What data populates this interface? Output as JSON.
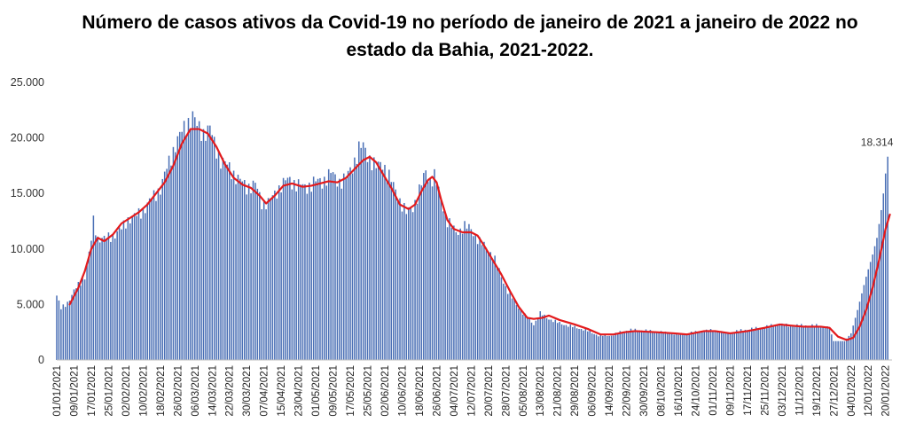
{
  "chart_data": {
    "type": "bar",
    "title": "Número de casos ativos da Covid-19 no período de janeiro de 2021 a janeiro de 2022 no estado da Bahia, 2021-2022.",
    "xlabel": "",
    "ylabel": "",
    "ylim": [
      0,
      25000
    ],
    "y_ticks": [
      0,
      5000,
      10000,
      15000,
      20000,
      25000
    ],
    "y_tick_labels": [
      "0",
      "5.000",
      "10.000",
      "15.000",
      "20.000",
      "25.000"
    ],
    "x_ticks": [
      {
        "day": 0,
        "label": "01/01/2021"
      },
      {
        "day": 8,
        "label": "09/01/2021"
      },
      {
        "day": 16,
        "label": "17/01/2021"
      },
      {
        "day": 24,
        "label": "25/01/2021"
      },
      {
        "day": 32,
        "label": "02/02/2021"
      },
      {
        "day": 40,
        "label": "10/02/2021"
      },
      {
        "day": 48,
        "label": "18/02/2021"
      },
      {
        "day": 56,
        "label": "26/02/2021"
      },
      {
        "day": 64,
        "label": "06/03/2021"
      },
      {
        "day": 72,
        "label": "14/03/2021"
      },
      {
        "day": 80,
        "label": "22/03/2021"
      },
      {
        "day": 88,
        "label": "30/03/2021"
      },
      {
        "day": 96,
        "label": "07/04/2021"
      },
      {
        "day": 104,
        "label": "15/04/2021"
      },
      {
        "day": 112,
        "label": "23/04/2021"
      },
      {
        "day": 120,
        "label": "01/05/2021"
      },
      {
        "day": 128,
        "label": "09/05/2021"
      },
      {
        "day": 136,
        "label": "17/05/2021"
      },
      {
        "day": 144,
        "label": "25/05/2021"
      },
      {
        "day": 152,
        "label": "02/06/2021"
      },
      {
        "day": 160,
        "label": "10/06/2021"
      },
      {
        "day": 168,
        "label": "18/06/2021"
      },
      {
        "day": 176,
        "label": "26/06/2021"
      },
      {
        "day": 184,
        "label": "04/07/2021"
      },
      {
        "day": 192,
        "label": "12/07/2021"
      },
      {
        "day": 200,
        "label": "20/07/2021"
      },
      {
        "day": 208,
        "label": "28/07/2021"
      },
      {
        "day": 216,
        "label": "05/08/2021"
      },
      {
        "day": 224,
        "label": "13/08/2021"
      },
      {
        "day": 232,
        "label": "21/08/2021"
      },
      {
        "day": 240,
        "label": "29/08/2021"
      },
      {
        "day": 248,
        "label": "06/09/2021"
      },
      {
        "day": 256,
        "label": "14/09/2021"
      },
      {
        "day": 264,
        "label": "22/09/2021"
      },
      {
        "day": 272,
        "label": "30/09/2021"
      },
      {
        "day": 280,
        "label": "08/10/2021"
      },
      {
        "day": 288,
        "label": "16/10/2021"
      },
      {
        "day": 296,
        "label": "24/10/2021"
      },
      {
        "day": 304,
        "label": "01/11/2021"
      },
      {
        "day": 312,
        "label": "09/11/2021"
      },
      {
        "day": 320,
        "label": "17/11/2021"
      },
      {
        "day": 328,
        "label": "25/11/2021"
      },
      {
        "day": 336,
        "label": "03/12/2021"
      },
      {
        "day": 344,
        "label": "11/12/2021"
      },
      {
        "day": 352,
        "label": "19/12/2021"
      },
      {
        "day": 360,
        "label": "27/12/2021"
      },
      {
        "day": 368,
        "label": "04/01/2022"
      },
      {
        "day": 376,
        "label": "12/01/2022"
      },
      {
        "day": 384,
        "label": "20/01/2022"
      }
    ],
    "x_range_days": [
      0,
      387
    ],
    "series": [
      {
        "kind": "bar",
        "color": "#4a6fb5",
        "description": "daily active cases (piecewise-linear keyframes, day = days since 01/01/2021)",
        "keyframes": [
          [
            0,
            5800
          ],
          [
            2,
            4600
          ],
          [
            5,
            5200
          ],
          [
            9,
            6500
          ],
          [
            13,
            7500
          ],
          [
            15,
            9500
          ],
          [
            16,
            10800
          ],
          [
            17,
            12500
          ],
          [
            19,
            11000
          ],
          [
            22,
            10900
          ],
          [
            26,
            11200
          ],
          [
            30,
            11800
          ],
          [
            33,
            12700
          ],
          [
            37,
            13000
          ],
          [
            40,
            13500
          ],
          [
            44,
            14500
          ],
          [
            48,
            15500
          ],
          [
            51,
            17200
          ],
          [
            55,
            19500
          ],
          [
            58,
            20500
          ],
          [
            61,
            21500
          ],
          [
            63,
            22000
          ],
          [
            65,
            21000
          ],
          [
            68,
            20500
          ],
          [
            71,
            20800
          ],
          [
            73,
            19500
          ],
          [
            76,
            18000
          ],
          [
            80,
            17300
          ],
          [
            84,
            16300
          ],
          [
            88,
            15600
          ],
          [
            92,
            15800
          ],
          [
            95,
            14200
          ],
          [
            98,
            14200
          ],
          [
            101,
            14900
          ],
          [
            104,
            15800
          ],
          [
            107,
            16200
          ],
          [
            111,
            15900
          ],
          [
            115,
            15500
          ],
          [
            119,
            16000
          ],
          [
            123,
            16100
          ],
          [
            127,
            16800
          ],
          [
            131,
            16100
          ],
          [
            134,
            16300
          ],
          [
            137,
            17500
          ],
          [
            140,
            19000
          ],
          [
            142,
            19200
          ],
          [
            145,
            18200
          ],
          [
            148,
            17300
          ],
          [
            151,
            17800
          ],
          [
            154,
            16500
          ],
          [
            158,
            14800
          ],
          [
            162,
            13200
          ],
          [
            165,
            13800
          ],
          [
            168,
            15200
          ],
          [
            171,
            17000
          ],
          [
            173,
            16200
          ],
          [
            175,
            16500
          ],
          [
            178,
            14500
          ],
          [
            181,
            12500
          ],
          [
            185,
            11500
          ],
          [
            189,
            12000
          ],
          [
            192,
            11800
          ],
          [
            196,
            10600
          ],
          [
            200,
            10000
          ],
          [
            203,
            9000
          ],
          [
            206,
            7500
          ],
          [
            209,
            6200
          ],
          [
            213,
            5000
          ],
          [
            217,
            4000
          ],
          [
            221,
            3200
          ],
          [
            224,
            4200
          ],
          [
            227,
            3800
          ],
          [
            233,
            3300
          ],
          [
            239,
            3000
          ],
          [
            245,
            2700
          ],
          [
            251,
            2200
          ],
          [
            257,
            2200
          ],
          [
            261,
            2500
          ],
          [
            265,
            2700
          ],
          [
            270,
            2700
          ],
          [
            280,
            2500
          ],
          [
            288,
            2300
          ],
          [
            296,
            2500
          ],
          [
            304,
            2700
          ],
          [
            310,
            2400
          ],
          [
            318,
            2700
          ],
          [
            326,
            2900
          ],
          [
            334,
            3200
          ],
          [
            340,
            3100
          ],
          [
            346,
            3100
          ],
          [
            352,
            3100
          ],
          [
            358,
            2900
          ],
          [
            360,
            1700
          ],
          [
            365,
            1700
          ],
          [
            368,
            2400
          ],
          [
            371,
            4500
          ],
          [
            375,
            7500
          ],
          [
            378,
            9500
          ],
          [
            380,
            11000
          ],
          [
            382,
            13500
          ],
          [
            383,
            15000
          ],
          [
            384,
            16800
          ],
          [
            385,
            18314
          ]
        ]
      },
      {
        "kind": "line",
        "color": "#e31a1c",
        "description": "moving average of active cases",
        "keyframes": [
          [
            6,
            5000
          ],
          [
            10,
            6500
          ],
          [
            13,
            8000
          ],
          [
            16,
            10000
          ],
          [
            19,
            11000
          ],
          [
            22,
            10700
          ],
          [
            26,
            11300
          ],
          [
            30,
            12300
          ],
          [
            34,
            12800
          ],
          [
            38,
            13300
          ],
          [
            42,
            14000
          ],
          [
            46,
            15000
          ],
          [
            50,
            16000
          ],
          [
            54,
            17500
          ],
          [
            58,
            19500
          ],
          [
            62,
            20800
          ],
          [
            66,
            20800
          ],
          [
            70,
            20400
          ],
          [
            74,
            19200
          ],
          [
            78,
            17600
          ],
          [
            82,
            16400
          ],
          [
            86,
            15800
          ],
          [
            90,
            15500
          ],
          [
            94,
            14800
          ],
          [
            97,
            14100
          ],
          [
            101,
            14800
          ],
          [
            105,
            15700
          ],
          [
            109,
            15900
          ],
          [
            114,
            15600
          ],
          [
            118,
            15700
          ],
          [
            122,
            15900
          ],
          [
            126,
            16100
          ],
          [
            130,
            16000
          ],
          [
            134,
            16400
          ],
          [
            138,
            17200
          ],
          [
            142,
            18000
          ],
          [
            145,
            18300
          ],
          [
            148,
            17800
          ],
          [
            151,
            16800
          ],
          [
            155,
            15500
          ],
          [
            159,
            14000
          ],
          [
            163,
            13600
          ],
          [
            166,
            14000
          ],
          [
            169,
            15200
          ],
          [
            172,
            16200
          ],
          [
            174,
            16500
          ],
          [
            176,
            16000
          ],
          [
            178,
            14500
          ],
          [
            181,
            12600
          ],
          [
            184,
            11800
          ],
          [
            188,
            11500
          ],
          [
            192,
            11500
          ],
          [
            195,
            11200
          ],
          [
            198,
            10300
          ],
          [
            202,
            9000
          ],
          [
            206,
            7700
          ],
          [
            210,
            6200
          ],
          [
            214,
            4800
          ],
          [
            218,
            3800
          ],
          [
            221,
            3700
          ],
          [
            225,
            3800
          ],
          [
            228,
            4000
          ],
          [
            233,
            3600
          ],
          [
            240,
            3200
          ],
          [
            246,
            2800
          ],
          [
            252,
            2300
          ],
          [
            258,
            2300
          ],
          [
            263,
            2500
          ],
          [
            268,
            2600
          ],
          [
            278,
            2500
          ],
          [
            286,
            2400
          ],
          [
            292,
            2300
          ],
          [
            300,
            2600
          ],
          [
            305,
            2600
          ],
          [
            312,
            2400
          ],
          [
            320,
            2600
          ],
          [
            328,
            2900
          ],
          [
            335,
            3200
          ],
          [
            340,
            3100
          ],
          [
            346,
            3000
          ],
          [
            354,
            3000
          ],
          [
            358,
            2900
          ],
          [
            362,
            2100
          ],
          [
            366,
            1800
          ],
          [
            369,
            2000
          ],
          [
            372,
            3000
          ],
          [
            375,
            4500
          ],
          [
            378,
            6500
          ],
          [
            381,
            9000
          ],
          [
            384,
            11800
          ],
          [
            386,
            13100
          ]
        ]
      }
    ],
    "data_labels": [
      {
        "day": 385,
        "value": 18314,
        "text": "18.314"
      }
    ]
  }
}
